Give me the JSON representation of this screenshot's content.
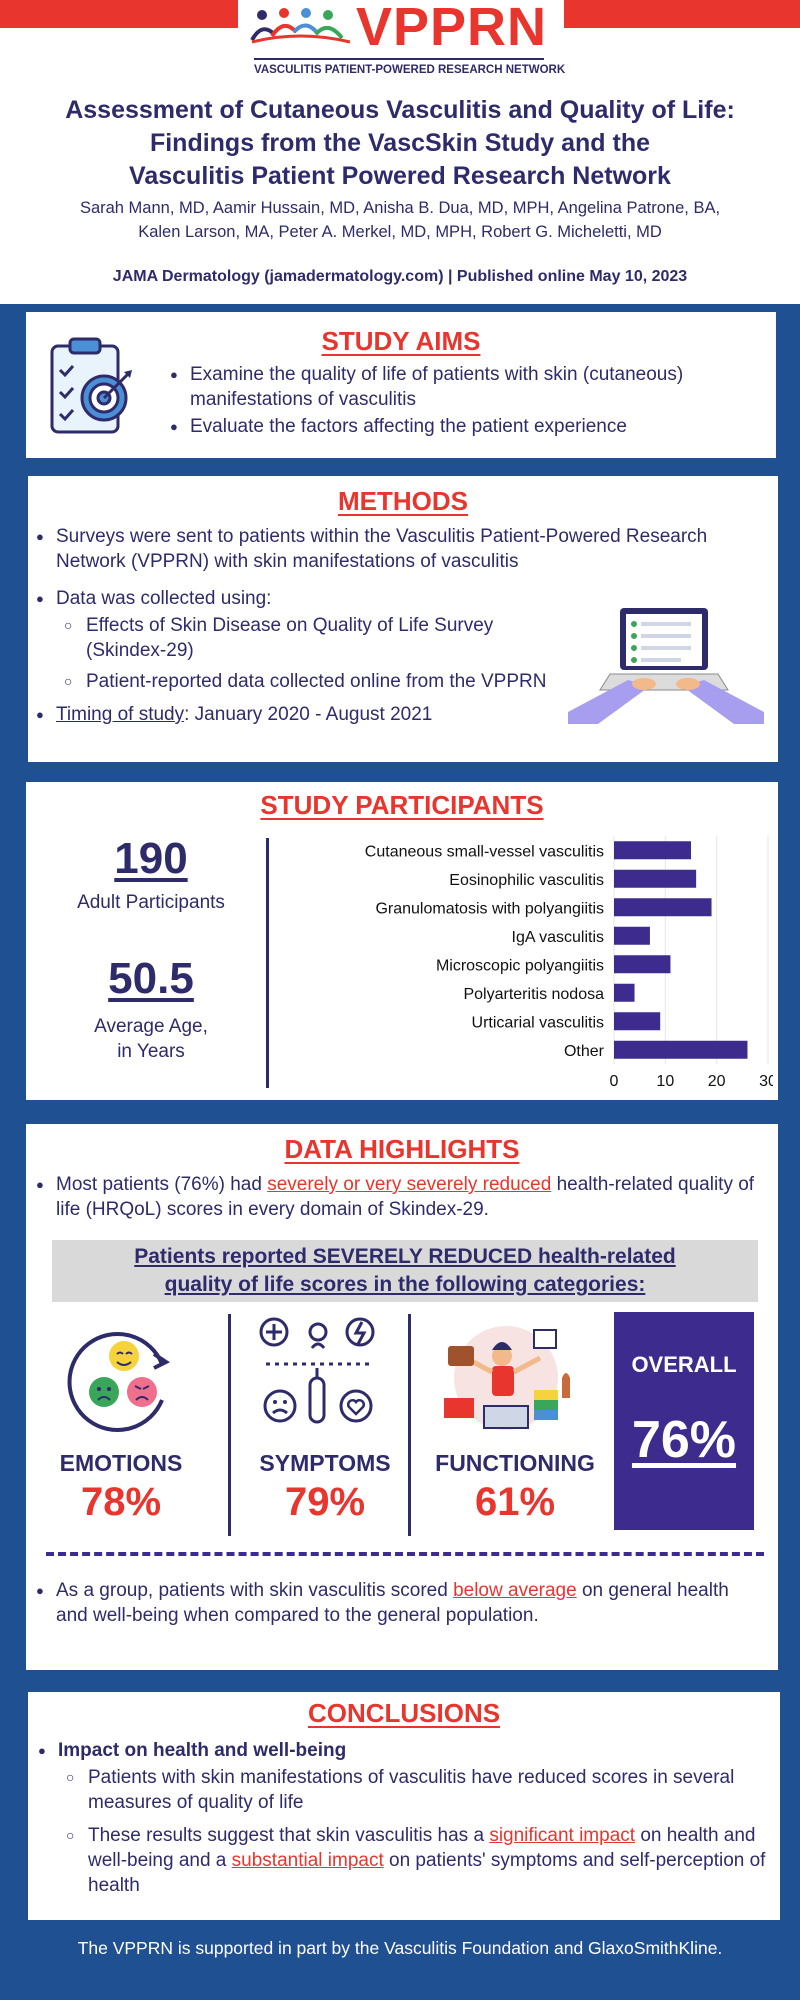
{
  "brand": {
    "logo_text": "VPPRN",
    "logo_subtitle": "VASCULITIS PATIENT-POWERED RESEARCH NETWORK",
    "colors": {
      "red": "#e8352d",
      "navy": "#2e2b6b",
      "purple": "#3d2b8e",
      "blue_bg": "#1f5092"
    }
  },
  "header": {
    "title_line1": "Assessment of Cutaneous Vasculitis and Quality of Life:",
    "title_line2": "Findings from the VascSkin Study and the",
    "title_line3": "Vasculitis Patient Powered Research Network",
    "authors_line1": "Sarah Mann, MD, Aamir Hussain, MD, Anisha B. Dua, MD, MPH, Angelina Patrone, BA,",
    "authors_line2": "Kalen Larson, MA, Peter A. Merkel, MD, MPH, Robert G. Micheletti, MD",
    "journal": "JAMA Dermatology (jamadermatology.com) | Published online May 10, 2023"
  },
  "aims": {
    "title": "STUDY AIMS",
    "icon": "clipboard-target-icon",
    "items": [
      "Examine the quality of life of patients with skin (cutaneous) manifestations of vasculitis",
      "Evaluate the factors affecting the patient experience"
    ]
  },
  "methods": {
    "title": "METHODS",
    "icon": "laptop-survey-icon",
    "item1": "Surveys were sent to patients within the Vasculitis Patient-Powered Research Network (VPPRN) with skin manifestations of vasculitis",
    "item2": "Data was collected using:",
    "sub1": "Effects of Skin Disease on Quality of Life Survey (Skindex-29)",
    "sub2": "Patient-reported data collected online from the VPPRN",
    "timing_label": "Timing of study",
    "timing_value": ": January 2020 - August 2021"
  },
  "participants": {
    "title": "STUDY PARTICIPANTS",
    "count": "190",
    "count_label": "Adult Participants",
    "age": "50.5",
    "age_label_line1": "Average Age,",
    "age_label_line2": "in Years"
  },
  "chart_data": {
    "type": "bar",
    "orientation": "horizontal",
    "categories": [
      "Cutaneous small-vessel vasculitis",
      "Eosinophilic vasculitis",
      "Granulomatosis with polyangiitis",
      "IgA vasculitis",
      "Microscopic polyangiitis",
      "Polyarteritis nodosa",
      "Urticarial vasculitis",
      "Other"
    ],
    "values": [
      15,
      16,
      19,
      7,
      11,
      4,
      9,
      26
    ],
    "xlim": [
      0,
      30
    ],
    "xticks": [
      "0",
      "10",
      "20",
      "30"
    ],
    "grid": true,
    "bar_color": "#3d2b8e"
  },
  "highlights": {
    "title": "DATA HIGHLIGHTS",
    "bullet1_pre": "Most patients (76%) had ",
    "bullet1_link": "severely or very severely reduced",
    "bullet1_post": " health-related quality of life (HRQoL) scores in every domain of Skindex-29.",
    "banner_line1": "Patients reported SEVERELY REDUCED health-related",
    "banner_line2": "quality of life scores in the following categories:",
    "categories": [
      {
        "name": "EMOTIONS",
        "pct": "78%",
        "icon": "emotions-faces-icon"
      },
      {
        "name": "SYMPTOMS",
        "pct": "79%",
        "icon": "symptoms-icon"
      },
      {
        "name": "FUNCTIONING",
        "pct": "61%",
        "icon": "juggling-tasks-icon"
      }
    ],
    "overall_label": "OVERALL",
    "overall_pct": "76%",
    "bullet2_pre": "As a group, patients with skin vasculitis scored ",
    "bullet2_link": "below average",
    "bullet2_post": " on general health and well-being when compared to the general population."
  },
  "conclusions": {
    "title": "CONCLUSIONS",
    "heading": "Impact on health and well-being",
    "sub1": "Patients with skin manifestations of vasculitis have reduced scores in several measures of quality of life",
    "sub2_pre": "These results suggest that skin vasculitis has a ",
    "sub2_link1": "significant impact",
    "sub2_mid": " on health and well-being and a ",
    "sub2_link2": "substantial impact",
    "sub2_post": " on patients' symptoms and self-perception of health"
  },
  "footer": {
    "text": "The VPPRN is supported in part by the Vasculitis Foundation and GlaxoSmithKline."
  }
}
